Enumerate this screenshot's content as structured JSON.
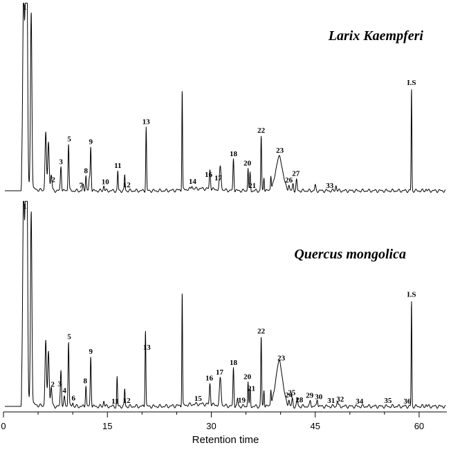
{
  "chart_data": {
    "type": "line",
    "xlabel": "Retention time",
    "xlim": [
      0,
      64
    ],
    "xticks": [
      0,
      15,
      30,
      45,
      60
    ],
    "panels": [
      {
        "title": "Larix Kaempferi",
        "ylim": [
          0,
          100
        ],
        "peaks": [
          {
            "t": 2.9,
            "h": 100,
            "w": 0.12
          },
          {
            "t": 3.2,
            "h": 100,
            "w": 0.12
          },
          {
            "t": 3.4,
            "h": 100,
            "w": 0.1
          },
          {
            "t": 4.0,
            "h": 100,
            "w": 0.1
          },
          {
            "t": 6.1,
            "h": 33,
            "w": 0.1
          },
          {
            "t": 6.5,
            "h": 28,
            "w": 0.1
          },
          {
            "t": 6.9,
            "h": 9,
            "w": 0.1
          },
          {
            "t": 8.3,
            "h": 14,
            "w": 0.08
          },
          {
            "t": 9.4,
            "h": 27,
            "w": 0.07
          },
          {
            "t": 11.5,
            "h": 3,
            "w": 0.08
          },
          {
            "t": 11.9,
            "h": 9,
            "w": 0.07
          },
          {
            "t": 12.4,
            "h": 7,
            "w": 0.07
          },
          {
            "t": 12.6,
            "h": 25,
            "w": 0.07
          },
          {
            "t": 14.5,
            "h": 3,
            "w": 0.08
          },
          {
            "t": 16.5,
            "h": 11,
            "w": 0.06
          },
          {
            "t": 17.5,
            "h": 9,
            "w": 0.06
          },
          {
            "t": 20.6,
            "h": 36,
            "w": 0.06
          },
          {
            "t": 25.8,
            "h": 57,
            "w": 0.05
          },
          {
            "t": 27.2,
            "h": 2,
            "w": 0.08
          },
          {
            "t": 29.8,
            "h": 11,
            "w": 0.08
          },
          {
            "t": 31.3,
            "h": 13,
            "w": 0.12
          },
          {
            "t": 33.2,
            "h": 18,
            "w": 0.07
          },
          {
            "t": 35.3,
            "h": 13,
            "w": 0.06
          },
          {
            "t": 35.6,
            "h": 10,
            "w": 0.06
          },
          {
            "t": 37.2,
            "h": 31,
            "w": 0.06
          },
          {
            "t": 37.6,
            "h": 8,
            "w": 0.06
          },
          {
            "t": 38.6,
            "h": 8,
            "w": 0.06
          },
          {
            "t": 39.8,
            "h": 19,
            "w": 0.5
          },
          {
            "t": 41.2,
            "h": 3,
            "w": 0.08
          },
          {
            "t": 41.8,
            "h": 4,
            "w": 0.08
          },
          {
            "t": 42.3,
            "h": 6,
            "w": 0.08
          },
          {
            "t": 45.0,
            "h": 3,
            "w": 0.08
          },
          {
            "t": 48.0,
            "h": 3,
            "w": 0.08
          },
          {
            "t": 58.9,
            "h": 58,
            "w": 0.05
          },
          {
            "t": 61.0,
            "h": 1,
            "w": 0.08
          }
        ],
        "peak_labels": [
          {
            "text": "1",
            "t": 3.1
          },
          {
            "text": "2",
            "t": 7.2
          },
          {
            "text": "3",
            "t": 8.3
          },
          {
            "text": "5",
            "t": 9.5
          },
          {
            "text": "7",
            "t": 11.2
          },
          {
            "text": "8",
            "t": 11.9
          },
          {
            "text": "9",
            "t": 12.6
          },
          {
            "text": "10",
            "t": 14.7
          },
          {
            "text": "11",
            "t": 16.5
          },
          {
            "text": "12",
            "t": 17.8
          },
          {
            "text": "13",
            "t": 20.6
          },
          {
            "text": "14",
            "t": 27.3
          },
          {
            "text": "16",
            "t": 29.6
          },
          {
            "text": "17",
            "t": 31.0
          },
          {
            "text": "18",
            "t": 33.2
          },
          {
            "text": "20",
            "t": 35.2
          },
          {
            "text": "21",
            "t": 35.9
          },
          {
            "text": "22",
            "t": 37.2
          },
          {
            "text": "23",
            "t": 39.9
          },
          {
            "text": "26",
            "t": 41.2
          },
          {
            "text": "27",
            "t": 42.2
          },
          {
            "text": "33",
            "t": 47.1
          },
          {
            "text": "I.S",
            "t": 58.9
          }
        ]
      },
      {
        "title": "Quercus mongolica",
        "ylim": [
          0,
          100
        ],
        "peaks": [
          {
            "t": 2.9,
            "h": 100,
            "w": 0.12
          },
          {
            "t": 3.2,
            "h": 100,
            "w": 0.12
          },
          {
            "t": 3.4,
            "h": 100,
            "w": 0.1
          },
          {
            "t": 4.0,
            "h": 100,
            "w": 0.1
          },
          {
            "t": 6.1,
            "h": 34,
            "w": 0.1
          },
          {
            "t": 6.5,
            "h": 29,
            "w": 0.1
          },
          {
            "t": 6.9,
            "h": 10,
            "w": 0.1
          },
          {
            "t": 8.3,
            "h": 19,
            "w": 0.08
          },
          {
            "t": 8.8,
            "h": 5,
            "w": 0.08
          },
          {
            "t": 9.4,
            "h": 34,
            "w": 0.07
          },
          {
            "t": 10.0,
            "h": 2,
            "w": 0.08
          },
          {
            "t": 11.9,
            "h": 11,
            "w": 0.07
          },
          {
            "t": 12.6,
            "h": 26,
            "w": 0.07
          },
          {
            "t": 14.5,
            "h": 3,
            "w": 0.08
          },
          {
            "t": 16.4,
            "h": 15,
            "w": 0.06
          },
          {
            "t": 17.5,
            "h": 9,
            "w": 0.06
          },
          {
            "t": 20.5,
            "h": 40,
            "w": 0.06
          },
          {
            "t": 25.8,
            "h": 59,
            "w": 0.05
          },
          {
            "t": 29.8,
            "h": 11,
            "w": 0.08
          },
          {
            "t": 31.3,
            "h": 14,
            "w": 0.12
          },
          {
            "t": 33.2,
            "h": 20,
            "w": 0.07
          },
          {
            "t": 33.8,
            "h": 4,
            "w": 0.07
          },
          {
            "t": 35.3,
            "h": 13,
            "w": 0.06
          },
          {
            "t": 35.6,
            "h": 9,
            "w": 0.06
          },
          {
            "t": 37.2,
            "h": 36,
            "w": 0.06
          },
          {
            "t": 37.6,
            "h": 9,
            "w": 0.06
          },
          {
            "t": 38.6,
            "h": 8,
            "w": 0.06
          },
          {
            "t": 39.8,
            "h": 23,
            "w": 0.5
          },
          {
            "t": 41.2,
            "h": 3,
            "w": 0.08
          },
          {
            "t": 41.7,
            "h": 4,
            "w": 0.08
          },
          {
            "t": 42.4,
            "h": 4,
            "w": 0.08
          },
          {
            "t": 44.3,
            "h": 3,
            "w": 0.08
          },
          {
            "t": 45.3,
            "h": 4,
            "w": 0.08
          },
          {
            "t": 48.2,
            "h": 3,
            "w": 0.08
          },
          {
            "t": 58.9,
            "h": 55,
            "w": 0.05
          },
          {
            "t": 61.0,
            "h": 1,
            "w": 0.08
          }
        ],
        "peak_labels": [
          {
            "text": "1",
            "t": 3.1
          },
          {
            "text": "2",
            "t": 7.1
          },
          {
            "text": "3",
            "t": 8.1
          },
          {
            "text": "4",
            "t": 8.8
          },
          {
            "text": "5",
            "t": 9.5
          },
          {
            "text": "6",
            "t": 10.1
          },
          {
            "text": "8",
            "t": 11.8
          },
          {
            "text": "9",
            "t": 12.6
          },
          {
            "text": "11",
            "t": 16.1
          },
          {
            "text": "12",
            "t": 17.8
          },
          {
            "text": "13",
            "t": 20.7
          },
          {
            "text": "15",
            "t": 28.1
          },
          {
            "text": "16",
            "t": 29.7
          },
          {
            "text": "17",
            "t": 31.2
          },
          {
            "text": "18",
            "t": 33.2
          },
          {
            "text": "19",
            "t": 34.4
          },
          {
            "text": "20",
            "t": 35.2
          },
          {
            "text": "21",
            "t": 35.8
          },
          {
            "text": "22",
            "t": 37.2
          },
          {
            "text": "23",
            "t": 40.1
          },
          {
            "text": "24",
            "t": 41.2
          },
          {
            "text": "25",
            "t": 41.6
          },
          {
            "text": "28",
            "t": 42.7
          },
          {
            "text": "29",
            "t": 44.2
          },
          {
            "text": "30",
            "t": 45.5
          },
          {
            "text": "31",
            "t": 47.3
          },
          {
            "text": "32",
            "t": 48.6
          },
          {
            "text": "34",
            "t": 51.4
          },
          {
            "text": "35",
            "t": 55.5
          },
          {
            "text": "36",
            "t": 58.3
          },
          {
            "text": "I.S",
            "t": 58.9
          }
        ]
      }
    ]
  }
}
